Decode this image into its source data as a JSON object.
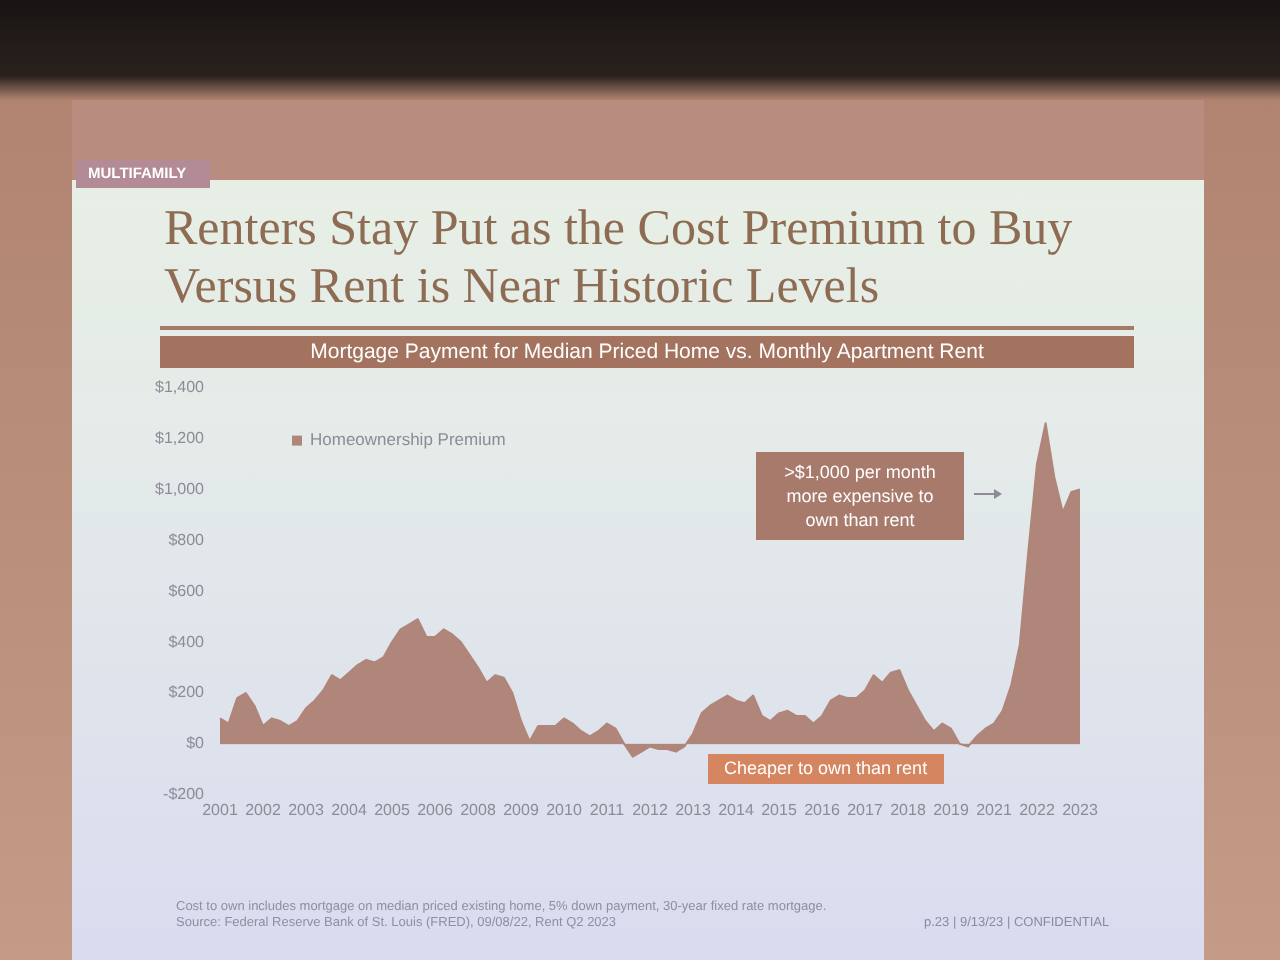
{
  "chart_data": {
    "type": "area",
    "title": "Renters Stay Put as the Cost Premium to Buy Versus Rent is Near Historic Levels",
    "subtitle": "Mortgage Payment for Median Priced Home vs. Monthly Apartment Rent",
    "annotations": [
      "MULTIFAMILY",
      ">$1,000 per month more expensive to own than rent",
      "Cheaper to own than rent",
      "Cost to own includes mortgage on median priced existing home, 5% down payment, 30-year fixed rate mortgage.",
      "Source: Federal Reserve Bank of St. Louis (FRED), 09/08/22, Rent Q2 2023",
      "p.23 | 9/13/23 | CONFIDENTIAL"
    ],
    "categories": [
      "2001",
      null,
      null,
      null,
      null,
      "2002",
      null,
      null,
      null,
      null,
      "2003",
      null,
      null,
      null,
      null,
      "2004",
      null,
      null,
      null,
      null,
      "2005",
      null,
      null,
      null,
      null,
      "2006",
      null,
      null,
      null,
      null,
      "2008",
      null,
      null,
      null,
      null,
      "2009",
      null,
      null,
      null,
      null,
      "2010",
      null,
      null,
      null,
      null,
      "2011",
      null,
      null,
      null,
      null,
      "2012",
      null,
      null,
      null,
      null,
      "2013",
      null,
      null,
      null,
      null,
      "2014",
      null,
      null,
      null,
      null,
      "2015",
      null,
      null,
      null,
      null,
      "2016",
      null,
      null,
      null,
      null,
      "2017",
      null,
      null,
      null,
      null,
      "2018",
      null,
      null,
      null,
      null,
      "2019",
      null,
      null,
      null,
      null,
      "2021",
      null,
      null,
      null,
      null,
      "2022",
      null,
      null,
      null,
      null,
      "2023"
    ],
    "series": [
      {
        "name": "Homeownership Premium",
        "color": "#b0857a",
        "values": [
          100,
          80,
          180,
          200,
          150,
          70,
          100,
          90,
          70,
          90,
          140,
          170,
          210,
          270,
          250,
          280,
          310,
          330,
          320,
          340,
          400,
          450,
          470,
          490,
          420,
          420,
          450,
          430,
          400,
          350,
          300,
          240,
          270,
          260,
          200,
          90,
          10,
          70,
          70,
          70,
          100,
          80,
          50,
          30,
          50,
          80,
          60,
          0,
          -50,
          -30,
          -10,
          -20,
          -20,
          -30,
          -10,
          40,
          120,
          150,
          170,
          190,
          170,
          160,
          190,
          110,
          90,
          120,
          130,
          110,
          110,
          80,
          110,
          170,
          190,
          180,
          180,
          210,
          270,
          240,
          280,
          290,
          210,
          150,
          90,
          50,
          80,
          60,
          0,
          -10,
          30,
          60,
          80,
          130,
          230,
          390,
          760,
          1100,
          1260,
          1050,
          910,
          990,
          1000
        ]
      }
    ],
    "ylim": [
      -200,
      1400
    ],
    "yticks": [
      {
        "value": -200,
        "label": "-$200"
      },
      {
        "value": 0,
        "label": "$0"
      },
      {
        "value": 200,
        "label": "$200"
      },
      {
        "value": 400,
        "label": "$400"
      },
      {
        "value": 600,
        "label": "$600"
      },
      {
        "value": 800,
        "label": "$800"
      },
      {
        "value": 1000,
        "label": "$1,000"
      },
      {
        "value": 1200,
        "label": "$1,200"
      },
      {
        "value": 1400,
        "label": "$1,400"
      }
    ],
    "legend": "top left"
  }
}
